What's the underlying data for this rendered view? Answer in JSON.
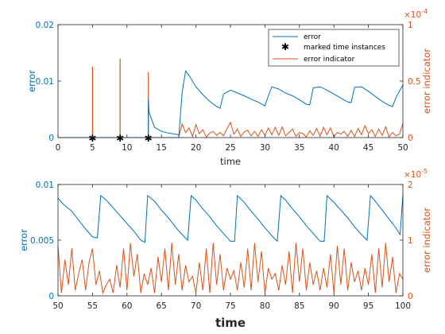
{
  "colors": {
    "error": "#0072BD",
    "indicator": "#D95319",
    "axis": "#262626",
    "marker": "#000000"
  },
  "chart_data": [
    {
      "type": "line",
      "xlabel": "time",
      "ylabel_left": "error",
      "ylabel_right": "error indicator",
      "xlim": [
        0,
        50
      ],
      "ylim_left": [
        0,
        0.02
      ],
      "ylim_right": [
        0,
        0.0001
      ],
      "right_exponent": "×10",
      "right_exponent_power": "-4",
      "x_ticks": [
        "0",
        "5",
        "10",
        "15",
        "20",
        "25",
        "30",
        "35",
        "40",
        "45",
        "50"
      ],
      "y_left_ticks": [
        "0",
        "0.01",
        "0.02"
      ],
      "y_right_ticks": [
        "0",
        "0.5",
        "1"
      ],
      "legend": {
        "position": "top-right",
        "entries": [
          "error",
          "marked time instances",
          "error indicator"
        ]
      },
      "marked_time_instances": [
        5.0,
        9.0,
        13.1
      ],
      "error_series": {
        "name": "error",
        "x": [
          0,
          17.5,
          18.0,
          18.5,
          19.0,
          20.0,
          21.0,
          22.0,
          23.0,
          23.5,
          24.0,
          25.0,
          26.0,
          27.0,
          28.0,
          29.0,
          30.0,
          30.5,
          31.0,
          32.0,
          33.0,
          34.0,
          35.0,
          36.0,
          36.5,
          37.0,
          38.0,
          39.0,
          40.0,
          41.0,
          42.0,
          42.5,
          43.0,
          44.0,
          45.0,
          46.0,
          47.0,
          48.0,
          48.5,
          49.0,
          50.0
        ],
        "y": [
          0,
          0,
          0.008,
          0.0118,
          0.011,
          0.009,
          0.0076,
          0.0064,
          0.0055,
          0.0052,
          0.0077,
          0.0084,
          0.0079,
          0.0074,
          0.0068,
          0.0063,
          0.0056,
          0.0074,
          0.009,
          0.0086,
          0.0079,
          0.0074,
          0.0067,
          0.0059,
          0.0058,
          0.0088,
          0.009,
          0.0084,
          0.0077,
          0.007,
          0.0063,
          0.0062,
          0.0089,
          0.009,
          0.0082,
          0.0073,
          0.0064,
          0.0057,
          0.0055,
          0.0071,
          0.0093
        ]
      },
      "transient_series": {
        "name": "error",
        "x": [
          13.1,
          13.2,
          14.0,
          15.0,
          16.0,
          17.0,
          17.5
        ],
        "y": [
          0.0068,
          0.0045,
          0.0018,
          0.0011,
          0.0008,
          0.0006,
          0.0005
        ]
      },
      "indicator_spikes": {
        "name": "error indicator",
        "x": [
          5.0,
          9.0,
          13.1
        ],
        "y": [
          6.3e-05,
          7e-05,
          5.8e-05
        ]
      },
      "indicator_series": {
        "name": "error indicator",
        "x": [
          17.5,
          18.0,
          18.5,
          19.0,
          19.5,
          20.0,
          20.5,
          21.0,
          21.5,
          22.0,
          22.5,
          23.0,
          23.5,
          24.0,
          24.5,
          25.0,
          25.5,
          26.0,
          26.5,
          27.0,
          27.5,
          28.0,
          28.5,
          29.0,
          29.5,
          30.0,
          30.5,
          31.0,
          31.5,
          32.0,
          32.5,
          33.0,
          33.5,
          34.0,
          34.5,
          35.0,
          35.5,
          36.0,
          36.5,
          37.0,
          37.5,
          38.0,
          38.5,
          39.0,
          39.5,
          40.0,
          40.5,
          41.0,
          41.5,
          42.0,
          42.5,
          43.0,
          43.5,
          44.0,
          44.5,
          45.0,
          45.5,
          46.0,
          46.5,
          47.0,
          47.5,
          48.0,
          48.5,
          49.0,
          49.5,
          50.0
        ],
        "y": [
          0,
          1.2e-05,
          4.5e-06,
          8.5e-06,
          1e-06,
          1.15e-05,
          3.5e-06,
          7e-06,
          5e-07,
          4e-06,
          5.5e-06,
          2e-06,
          4.5e-06,
          1.5e-06,
          8e-06,
          1.35e-05,
          3e-06,
          7.5e-06,
          1e-06,
          5e-06,
          6.5e-06,
          1.5e-06,
          5.5e-06,
          1e-06,
          7e-06,
          2e-06,
          8.5e-06,
          2.5e-06,
          9e-06,
          2e-06,
          9.5e-06,
          1.5e-06,
          4.5e-06,
          7.5e-06,
          1e-06,
          4.5e-06,
          3.5e-06,
          5e-07,
          6e-06,
          2e-06,
          8e-06,
          1e-06,
          9e-06,
          2.5e-06,
          8.5e-06,
          5e-07,
          4.5e-06,
          3e-06,
          5.5e-06,
          1e-06,
          6.5e-06,
          1e-06,
          8e-06,
          2.5e-06,
          1.05e-05,
          3.5e-06,
          7e-06,
          1e-06,
          7.5e-06,
          2e-06,
          9.5e-06,
          5e-07,
          4.5e-06,
          1.5e-06,
          3e-06,
          1.25e-05
        ]
      }
    },
    {
      "type": "line",
      "xlabel": "time",
      "ylabel_left": "error",
      "ylabel_right": "error indicator",
      "xlim": [
        50,
        100
      ],
      "ylim_left": [
        0,
        0.01
      ],
      "ylim_right": [
        0,
        2e-05
      ],
      "right_exponent": "×10",
      "right_exponent_power": "-5",
      "x_ticks": [
        "50",
        "55",
        "60",
        "65",
        "70",
        "75",
        "80",
        "85",
        "90",
        "95",
        "100"
      ],
      "y_left_ticks": [
        "0",
        "0.005",
        "0.01"
      ],
      "y_right_ticks": [
        "0",
        "1",
        "2"
      ],
      "error_series": {
        "name": "error",
        "x": [
          50.0,
          50.5,
          51.0,
          52.0,
          53.0,
          54.0,
          55.0,
          55.7,
          56.2,
          57.0,
          58.0,
          59.0,
          60.0,
          61.0,
          62.0,
          62.6,
          63.0,
          64.0,
          65.0,
          66.0,
          67.0,
          68.0,
          68.8,
          69.3,
          70.0,
          71.0,
          72.0,
          73.0,
          74.0,
          75.0,
          75.6,
          76.0,
          77.0,
          78.0,
          79.0,
          80.0,
          81.0,
          81.8,
          82.3,
          83.0,
          84.0,
          85.0,
          86.0,
          87.0,
          88.0,
          88.6,
          89.0,
          90.0,
          91.0,
          92.0,
          93.0,
          94.0,
          94.8,
          95.3,
          96.0,
          97.0,
          98.0,
          99.0,
          99.6,
          100.0
        ],
        "y": [
          0.0088,
          0.0084,
          0.0081,
          0.0076,
          0.0068,
          0.006,
          0.0053,
          0.0052,
          0.009,
          0.0086,
          0.0079,
          0.0072,
          0.0065,
          0.0058,
          0.005,
          0.0048,
          0.009,
          0.0085,
          0.0077,
          0.007,
          0.0062,
          0.0055,
          0.005,
          0.009,
          0.0086,
          0.0078,
          0.0071,
          0.0063,
          0.0056,
          0.0049,
          0.0049,
          0.009,
          0.0084,
          0.0076,
          0.0069,
          0.0061,
          0.0054,
          0.0049,
          0.009,
          0.0086,
          0.0078,
          0.0071,
          0.0063,
          0.0056,
          0.0049,
          0.0049,
          0.009,
          0.0084,
          0.0077,
          0.007,
          0.0062,
          0.0055,
          0.005,
          0.009,
          0.0085,
          0.0077,
          0.0069,
          0.0061,
          0.0055,
          0.0091
        ]
      },
      "indicator_series": {
        "name": "error indicator",
        "x": [
          50.0,
          50.5,
          51.0,
          51.5,
          52.0,
          52.5,
          53.0,
          53.5,
          54.0,
          54.5,
          55.0,
          55.5,
          56.0,
          56.5,
          57.0,
          57.5,
          58.0,
          58.5,
          59.0,
          59.5,
          60.0,
          60.5,
          61.0,
          61.5,
          62.0,
          62.5,
          63.0,
          63.5,
          64.0,
          64.5,
          65.0,
          65.5,
          66.0,
          66.5,
          67.0,
          67.5,
          68.0,
          68.5,
          69.0,
          69.5,
          70.0,
          70.5,
          71.0,
          71.5,
          72.0,
          72.5,
          73.0,
          73.5,
          74.0,
          74.5,
          75.0,
          75.5,
          76.0,
          76.5,
          77.0,
          77.5,
          78.0,
          78.5,
          79.0,
          79.5,
          80.0,
          80.5,
          81.0,
          81.5,
          82.0,
          82.5,
          83.0,
          83.5,
          84.0,
          84.5,
          85.0,
          85.5,
          86.0,
          86.5,
          87.0,
          87.5,
          88.0,
          88.5,
          89.0,
          89.5,
          90.0,
          90.5,
          91.0,
          91.5,
          92.0,
          92.5,
          93.0,
          93.5,
          94.0,
          94.5,
          95.0,
          95.5,
          96.0,
          96.5,
          97.0,
          97.5,
          98.0,
          98.5,
          99.0,
          99.5,
          100.0
        ],
        "y": [
          9e-06,
          5e-07,
          6.5e-06,
          2e-06,
          8.5e-06,
          1e-06,
          4e-06,
          6.5e-06,
          1e-06,
          6e-06,
          8.5e-06,
          2e-06,
          4.5e-06,
          5e-07,
          2e-06,
          3e-06,
          5e-07,
          5.5e-06,
          1.5e-06,
          8.5e-06,
          1e-06,
          9.5e-06,
          3.5e-06,
          7.5e-06,
          5e-07,
          4e-06,
          2e-06,
          5e-06,
          5e-07,
          7e-06,
          2.5e-06,
          8.5e-06,
          1e-06,
          9.5e-06,
          2e-06,
          7.5e-06,
          1e-06,
          5.5e-06,
          2.5e-06,
          3.5e-06,
          5e-07,
          6e-06,
          1e-06,
          8.5e-06,
          5e-07,
          9.5e-06,
          2e-06,
          7.5e-06,
          1e-06,
          5e-06,
          3e-06,
          4.5e-06,
          1e-06,
          6e-06,
          1.5e-06,
          8.5e-06,
          1e-06,
          9.5e-06,
          2.5e-06,
          8e-06,
          5e-07,
          5e-06,
          3e-06,
          4e-06,
          1e-06,
          5.5e-06,
          2e-06,
          8e-06,
          5e-07,
          9.5e-06,
          2.5e-06,
          8.5e-06,
          1e-06,
          6e-06,
          2e-06,
          4.5e-06,
          1e-06,
          5e-06,
          1.5e-06,
          7.5e-06,
          5e-07,
          9e-06,
          2e-06,
          8.5e-06,
          1e-06,
          6e-06,
          2.5e-06,
          4.5e-06,
          1e-06,
          5e-06,
          2e-06,
          7.5e-06,
          5e-07,
          8.5e-06,
          1.5e-06,
          9.5e-06,
          2.5e-06,
          7e-06,
          5e-07,
          4e-06,
          3e-06
        ]
      }
    }
  ]
}
